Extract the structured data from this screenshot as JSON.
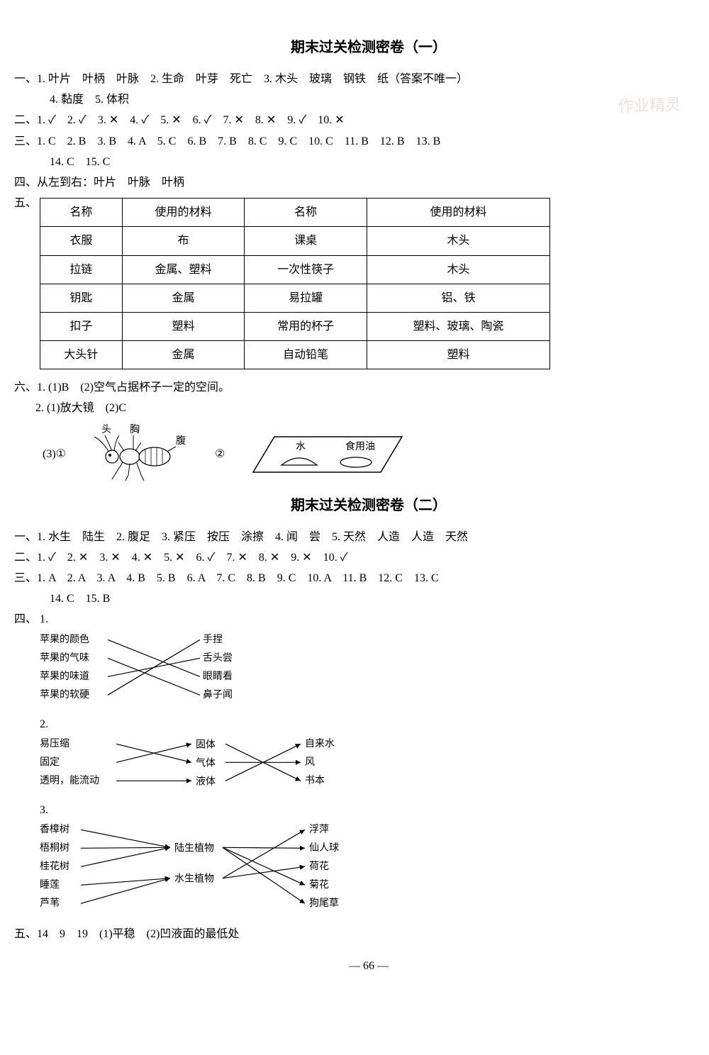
{
  "watermark": "作业精灵",
  "page_number": "— 66 —",
  "exam1": {
    "title": "期末过关检测密卷（一）",
    "q1": "一、1. 叶片　叶柄　叶脉　2. 生命　叶芽　死亡　3. 木头　玻璃　钢铁　纸（答案不唯一）",
    "q1b": "4. 黏度　5. 体积",
    "q2": "二、1. ✓　2. ✓　3. ✕　4. ✓　5. ✕　6. ✓　7. ✕　8. ✕　9. ✓　10. ✕",
    "q3": "三、1. C　2. B　3. B　4. A　5. C　6. B　7. B　8. C　9. C　10. C　11. B　12. B　13. B",
    "q3b": "14. C　15. C",
    "q4": "四、从左到右：叶片　叶脉　叶柄",
    "q5_label": "五、",
    "table": {
      "headers": [
        "名称",
        "使用的材料",
        "名称",
        "使用的材料"
      ],
      "rows": [
        [
          "衣服",
          "布",
          "课桌",
          "木头"
        ],
        [
          "拉链",
          "金属、塑料",
          "一次性筷子",
          "木头"
        ],
        [
          "钥匙",
          "金属",
          "易拉罐",
          "铝、铁"
        ],
        [
          "扣子",
          "塑料",
          "常用的杯子",
          "塑料、玻璃、陶瓷"
        ],
        [
          "大头针",
          "金属",
          "自动铅笔",
          "塑料"
        ]
      ]
    },
    "q6a": "六、1. (1)B　(2)空气占据杯子一定的空间。",
    "q6b": "2. (1)放大镜　(2)C",
    "q6c_prefix": "(3)①",
    "insect_labels": {
      "head": "头",
      "thorax": "胸",
      "abdomen": "腹"
    },
    "q6c_mid": "②",
    "slide_labels": {
      "water": "水",
      "oil": "食用油"
    }
  },
  "exam2": {
    "title": "期末过关检测密卷（二）",
    "q1": "一、1. 水生　陆生　2. 腹足　3. 紧压　按压　涂擦　4. 闻　尝　5. 天然　人造　人造　天然",
    "q2": "二、1. ✓　2. ✕　3. ✕　4. ✕　5. ✕　6. ✓　7. ✕　8. ✕　9. ✕　10. ✓",
    "q3": "三、1. A　2. A　3. A　4. B　5. B　6. A　7. C　8. B　9. C　10. A　11. B　12. C　13. C",
    "q3b": "14. C　15. B",
    "q4_label": "四、",
    "match1": {
      "num": "1.",
      "left": [
        "苹果的颜色",
        "苹果的气味",
        "苹果的味道",
        "苹果的软硬"
      ],
      "right": [
        "手捏",
        "舌头尝",
        "眼睛看",
        "鼻子闻"
      ],
      "links": [
        [
          0,
          2
        ],
        [
          1,
          3
        ],
        [
          2,
          1
        ],
        [
          3,
          0
        ]
      ]
    },
    "match2": {
      "num": "2.",
      "left": [
        "易压缩",
        "固定",
        "透明，能流动"
      ],
      "mid": [
        "固体",
        "气体",
        "液体"
      ],
      "right": [
        "自来水",
        "风",
        "书本"
      ],
      "links_lm": [
        [
          0,
          1
        ],
        [
          1,
          0
        ],
        [
          2,
          2
        ]
      ],
      "links_mr": [
        [
          0,
          2
        ],
        [
          1,
          1
        ],
        [
          2,
          0
        ]
      ]
    },
    "match3": {
      "num": "3.",
      "left": [
        "香樟树",
        "梧桐树",
        "桂花树",
        "睡莲",
        "芦苇"
      ],
      "mid": [
        "陆生植物",
        "水生植物"
      ],
      "right": [
        "浮萍",
        "仙人球",
        "荷花",
        "菊花",
        "狗尾草"
      ],
      "links_lm": [
        [
          0,
          0
        ],
        [
          1,
          0
        ],
        [
          2,
          0
        ],
        [
          3,
          1
        ],
        [
          4,
          1
        ]
      ],
      "links_mr": [
        [
          0,
          1
        ],
        [
          0,
          3
        ],
        [
          0,
          4
        ],
        [
          1,
          0
        ],
        [
          1,
          2
        ]
      ]
    },
    "q5": "五、14　9　19　(1)平稳　(2)凹液面的最低处"
  },
  "style": {
    "text_color": "#000000",
    "background": "#ffffff",
    "border_color": "#000000",
    "font_size_body": 16,
    "font_size_title": 20,
    "match_font_size": 14
  }
}
